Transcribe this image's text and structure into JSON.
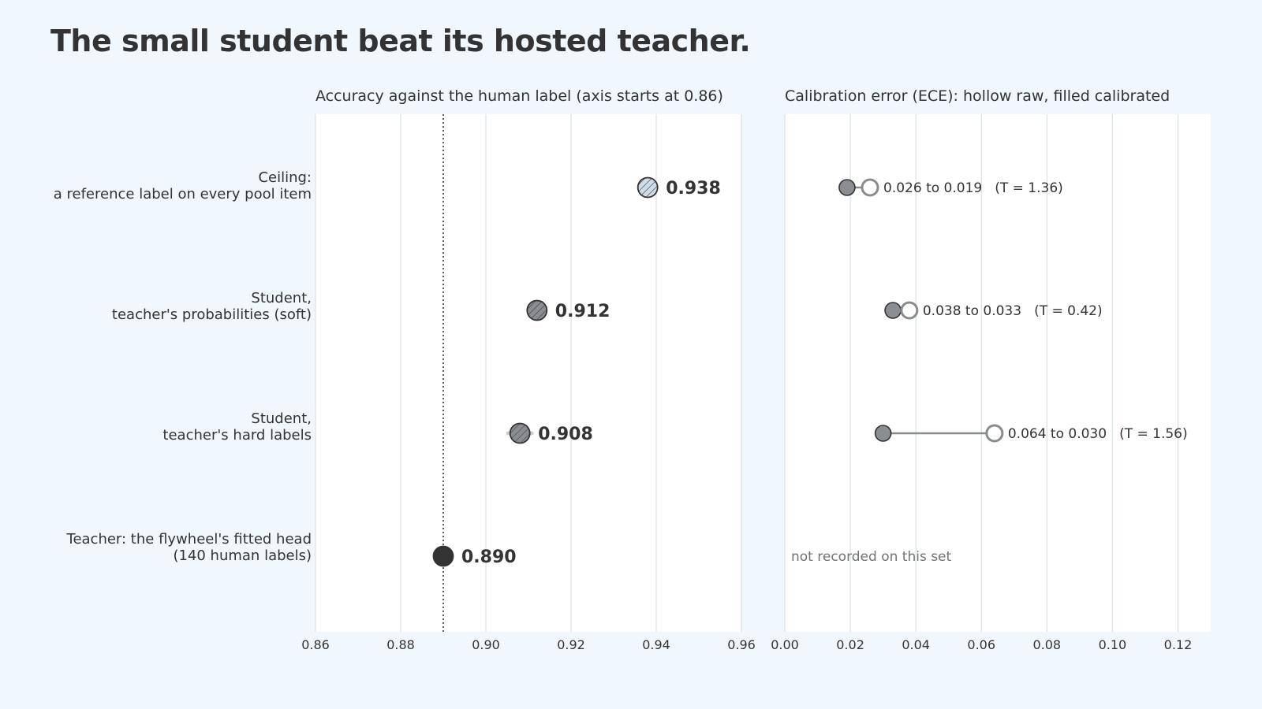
{
  "title": "The small student beat its hosted teacher.",
  "rows": [
    {
      "label_line1": "Ceiling:",
      "label_line2": "a reference label on every pool item"
    },
    {
      "label_line1": "Student,",
      "label_line2": "teacher's probabilities (soft)"
    },
    {
      "label_line1": "Student,",
      "label_line2": "teacher's hard labels"
    },
    {
      "label_line1": "Teacher: the flywheel's fitted head",
      "label_line2": "(140 human labels)"
    }
  ],
  "chart_data": [
    {
      "type": "scatter",
      "panel": "accuracy",
      "title": "Accuracy against the human label (axis starts at 0.86)",
      "categories": [
        "Ceiling",
        "Student soft",
        "Student hard",
        "Teacher"
      ],
      "values": [
        0.938,
        0.912,
        0.908,
        0.89
      ],
      "value_labels": [
        "0.938",
        "0.912",
        "0.908",
        "0.890"
      ],
      "xlim": [
        0.86,
        0.96
      ],
      "xticks": [
        0.86,
        0.88,
        0.9,
        0.92,
        0.94,
        0.96
      ],
      "xtick_labels": [
        "0.86",
        "0.88",
        "0.90",
        "0.92",
        "0.94",
        "0.96"
      ],
      "reference_line": 0.89,
      "grid": true
    },
    {
      "type": "dumbbell",
      "panel": "calibration",
      "title": "Calibration error (ECE): hollow raw, filled calibrated",
      "categories": [
        "Ceiling",
        "Student soft",
        "Student hard",
        "Teacher"
      ],
      "raw": [
        0.026,
        0.038,
        0.064,
        null
      ],
      "calibrated": [
        0.019,
        0.033,
        0.03,
        null
      ],
      "annotations": [
        "0.026 to 0.019",
        "0.038 to 0.033",
        "0.064 to 0.030",
        null
      ],
      "temperatures": [
        "(T = 1.36)",
        "(T = 0.42)",
        "(T = 1.56)",
        null
      ],
      "missing_note": "not recorded on this set",
      "xlim": [
        0.0,
        0.13
      ],
      "xticks": [
        0.0,
        0.02,
        0.04,
        0.06,
        0.08,
        0.1,
        0.12
      ],
      "xtick_labels": [
        "0.00",
        "0.02",
        "0.04",
        "0.06",
        "0.08",
        "0.10",
        "0.12"
      ],
      "grid": true
    }
  ],
  "colors": {
    "background": "#f0f7fd",
    "panel": "#ffffff",
    "grid": "#cfdbe4",
    "ink": "#333333",
    "muted": "#888b8f",
    "ceiling_fill": "#cfdde8",
    "student_fill": "#8a8d92",
    "teacher_fill": "#333333",
    "calibrated_fill": "#8a8d92"
  }
}
